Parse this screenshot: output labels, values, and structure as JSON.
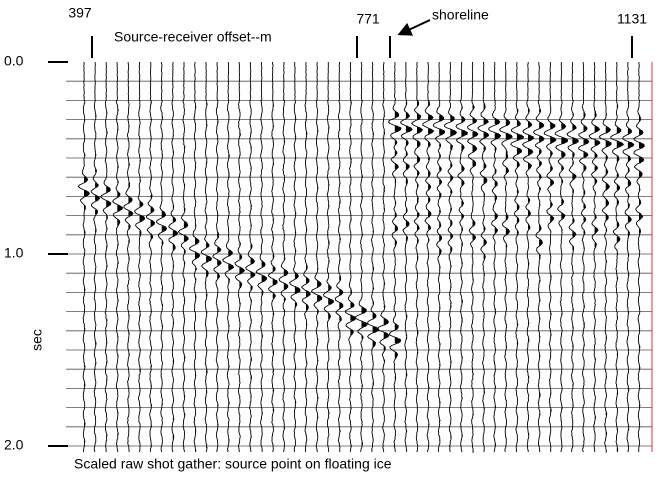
{
  "header": {
    "title": "Source-receiver offset--m",
    "annotation": "shoreline"
  },
  "offset_labels": [
    "397",
    "771",
    "1131"
  ],
  "time_axis": {
    "label": "sec",
    "ticks": [
      "0.0",
      "1.0",
      "2.0"
    ]
  },
  "caption": "Scaled raw shot gather: source point on floating ice"
}
